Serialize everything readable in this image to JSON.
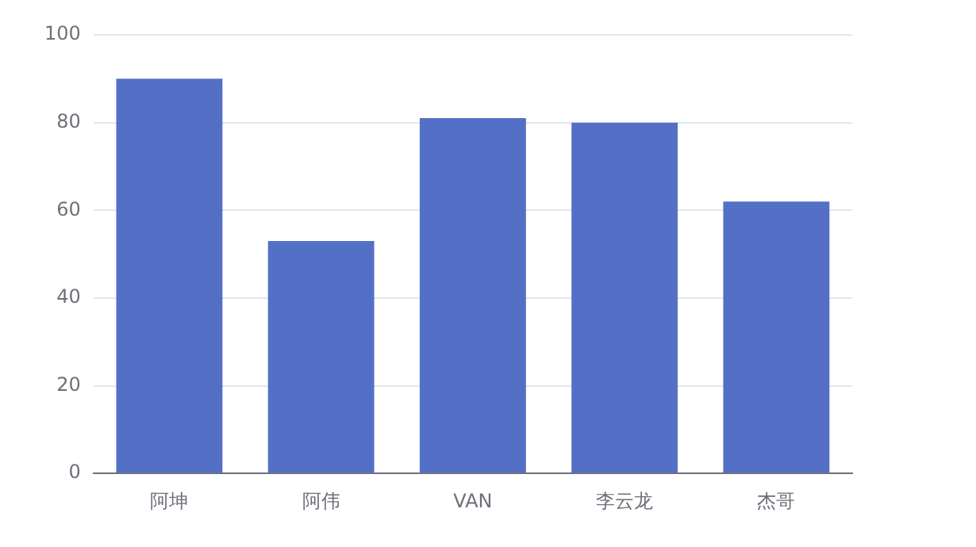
{
  "chart_data": {
    "type": "bar",
    "categories": [
      "阿坤",
      "阿伟",
      "VAN",
      "李云龙",
      "杰哥"
    ],
    "values": [
      90,
      53,
      81,
      80,
      62
    ],
    "color": "#5470c6",
    "ylim": [
      0,
      100
    ],
    "yticks": [
      0,
      20,
      40,
      60,
      80,
      100
    ],
    "grid": "y",
    "legend": false
  }
}
